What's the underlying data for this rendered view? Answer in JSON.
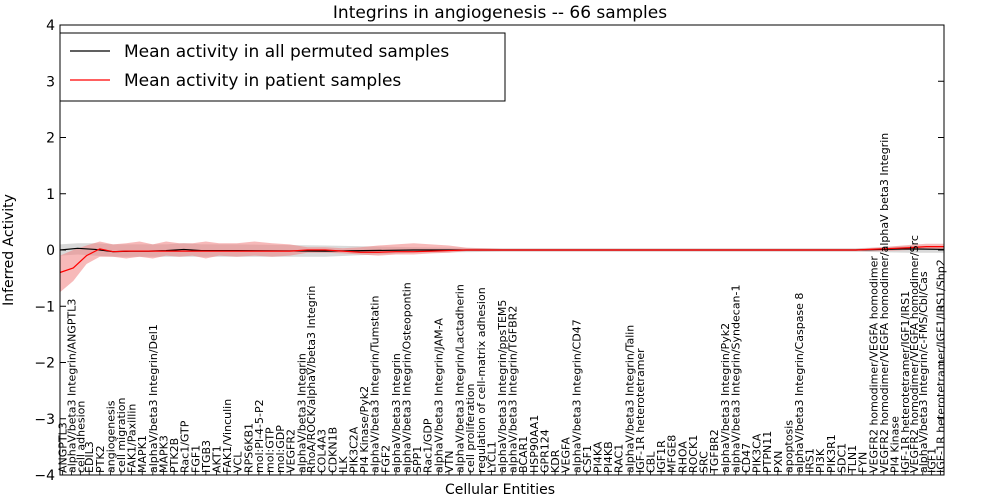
{
  "chart_data": {
    "type": "line",
    "title": "Integrins in angiogenesis -- 66 samples",
    "xlabel": "Cellular Entities",
    "ylabel": "Inferred Activity",
    "ylim": [
      -4,
      4
    ],
    "yticks": [
      -4,
      -3,
      -2,
      -1,
      0,
      1,
      2,
      3,
      4
    ],
    "ytick_labels": [
      "−4",
      "−3",
      "−2",
      "−1",
      "0",
      "1",
      "2",
      "3",
      "4"
    ],
    "xlim": [
      0,
      1
    ],
    "legend_position": "upper-left",
    "colors": {
      "permuted": "#000000",
      "permuted_band": "#bfbfbf",
      "patient": "#ff0000",
      "patient_band": "#f08080"
    },
    "series": [
      {
        "name": "Mean activity in all permuted samples",
        "key": "permuted",
        "x": [
          0,
          0.02,
          0.04,
          0.06,
          0.08,
          0.1,
          0.12,
          0.14,
          0.16,
          0.2,
          0.3,
          0.4,
          0.5,
          0.6,
          0.7,
          0.8,
          0.9,
          0.96,
          1.0
        ],
        "values": [
          0,
          0.03,
          0.01,
          -0.03,
          -0.02,
          -0.02,
          -0.01,
          0.01,
          -0.01,
          -0.01,
          -0.02,
          0,
          0,
          0,
          0,
          0,
          0,
          0.02,
          0.01
        ],
        "lower": [
          -0.1,
          -0.08,
          -0.1,
          -0.12,
          -0.12,
          -0.12,
          -0.12,
          -0.12,
          -0.12,
          -0.12,
          -0.12,
          -0.05,
          -0.03,
          -0.03,
          -0.03,
          -0.03,
          -0.03,
          -0.05,
          -0.05
        ],
        "upper": [
          0.1,
          0.12,
          0.12,
          0.1,
          0.1,
          0.1,
          0.1,
          0.12,
          0.1,
          0.1,
          0.08,
          0.05,
          0.03,
          0.03,
          0.03,
          0.03,
          0.03,
          0.07,
          0.07
        ]
      },
      {
        "name": "Mean activity in patient samples",
        "key": "patient",
        "x": [
          0,
          0.015,
          0.03,
          0.045,
          0.06,
          0.075,
          0.09,
          0.105,
          0.12,
          0.135,
          0.15,
          0.165,
          0.18,
          0.2,
          0.22,
          0.24,
          0.26,
          0.28,
          0.3,
          0.32,
          0.34,
          0.36,
          0.38,
          0.4,
          0.42,
          0.44,
          0.46,
          0.48,
          0.5,
          0.55,
          0.6,
          0.65,
          0.7,
          0.75,
          0.8,
          0.85,
          0.9,
          0.93,
          0.96,
          0.98,
          1.0
        ],
        "values": [
          -0.4,
          -0.32,
          -0.1,
          0.02,
          -0.03,
          -0.02,
          -0.02,
          -0.02,
          -0.02,
          -0.02,
          -0.02,
          -0.02,
          -0.02,
          -0.02,
          -0.02,
          -0.02,
          -0.02,
          0,
          0,
          -0.02,
          -0.04,
          -0.04,
          -0.03,
          -0.03,
          -0.02,
          -0.01,
          0,
          0,
          0,
          0,
          0,
          0,
          0,
          0,
          0,
          0,
          0,
          0.02,
          0.04,
          0.06,
          0.06
        ],
        "lower": [
          -0.75,
          -0.55,
          -0.25,
          -0.12,
          -0.12,
          -0.15,
          -0.12,
          -0.15,
          -0.1,
          -0.12,
          -0.1,
          -0.15,
          -0.1,
          -0.12,
          -0.1,
          -0.12,
          -0.1,
          -0.05,
          -0.05,
          -0.06,
          -0.08,
          -0.1,
          -0.08,
          -0.08,
          -0.06,
          -0.05,
          -0.02,
          -0.02,
          -0.02,
          -0.02,
          -0.02,
          -0.02,
          -0.02,
          -0.02,
          -0.02,
          -0.02,
          -0.02,
          -0.02,
          0,
          0.01,
          0.01
        ],
        "upper": [
          -0.1,
          0,
          0.08,
          0.15,
          0.1,
          0.12,
          0.15,
          0.1,
          0.15,
          0.12,
          0.12,
          0.15,
          0.12,
          0.12,
          0.15,
          0.12,
          0.1,
          0.05,
          0.05,
          0.03,
          0.05,
          0.08,
          0.1,
          0.12,
          0.1,
          0.08,
          0.04,
          0.03,
          0.02,
          0.02,
          0.02,
          0.02,
          0.02,
          0.02,
          0.02,
          0.02,
          0.02,
          0.05,
          0.09,
          0.11,
          0.11
        ]
      }
    ],
    "entities": [
      {
        "name": "ANGPTL3",
        "x": 0.003
      },
      {
        "name": "alphaV/beta3 Integrin/ANGPTL3",
        "x": 0.013
      },
      {
        "name": "cell adhesion",
        "x": 0.023
      },
      {
        "name": "EDIL3",
        "x": 0.033
      },
      {
        "name": "PTK2",
        "x": 0.045
      },
      {
        "name": "angiogenesis",
        "x": 0.057
      },
      {
        "name": "cell migration",
        "x": 0.069
      },
      {
        "name": "FAK1/Paxillin",
        "x": 0.081
      },
      {
        "name": "MAPK1",
        "x": 0.093
      },
      {
        "name": "alphaV/beta3 Integrin/Del1",
        "x": 0.105
      },
      {
        "name": "MAPK3",
        "x": 0.117
      },
      {
        "name": "PTK2B",
        "x": 0.129
      },
      {
        "name": "Rac1/GTP",
        "x": 0.141
      },
      {
        "name": "FGF1",
        "x": 0.153
      },
      {
        "name": "ITGB3",
        "x": 0.165
      },
      {
        "name": "AKT1",
        "x": 0.177
      },
      {
        "name": "FAK1/Vinculin",
        "x": 0.189
      },
      {
        "name": "VCL",
        "x": 0.201
      },
      {
        "name": "RPS6KB1",
        "x": 0.213
      },
      {
        "name": "mol:PI-4-5-P2",
        "x": 0.225
      },
      {
        "name": "mol:GTP",
        "x": 0.237
      },
      {
        "name": "mol:GDP",
        "x": 0.249
      },
      {
        "name": "VEGFR2",
        "x": 0.261
      },
      {
        "name": "alphaV/beta3 Integrin",
        "x": 0.273
      },
      {
        "name": "RhoA/ROCK/alphaV/beta3 Integrin",
        "x": 0.284
      },
      {
        "name": "COL4A3",
        "x": 0.296
      },
      {
        "name": "CDKN1B",
        "x": 0.308
      },
      {
        "name": "ILK",
        "x": 0.32
      },
      {
        "name": "PIK3C2A",
        "x": 0.332
      },
      {
        "name": "PI4 Kinase/Pyk2",
        "x": 0.344
      },
      {
        "name": "alphaV/beta3 Integrin/Tumstatin",
        "x": 0.356
      },
      {
        "name": "FGF2",
        "x": 0.368
      },
      {
        "name": "alphaV/beta3 Integrin",
        "x": 0.38
      },
      {
        "name": "alphaV/beta3 Integrin/Osteopontin",
        "x": 0.392
      },
      {
        "name": "SPP1",
        "x": 0.404
      },
      {
        "name": "Rac1/GDP",
        "x": 0.416
      },
      {
        "name": "alphaV/beta3 Integrin/JAM-A",
        "x": 0.428
      },
      {
        "name": "VTN",
        "x": 0.44
      },
      {
        "name": "alphaV/beta3 Integrin/Lactadherin",
        "x": 0.452
      },
      {
        "name": "cell proliferation",
        "x": 0.464
      },
      {
        "name": "regulation of cell-matrix adhesion",
        "x": 0.476
      },
      {
        "name": "LYCL1",
        "x": 0.488
      },
      {
        "name": "alphaV/beta3 Integrin/ppsTEM5",
        "x": 0.5
      },
      {
        "name": "alphaV/beta3 Integrin/TGFBR2",
        "x": 0.512
      },
      {
        "name": "BCAR1",
        "x": 0.524
      },
      {
        "name": "HSP90AA1",
        "x": 0.536
      },
      {
        "name": "GPR124",
        "x": 0.548
      },
      {
        "name": "KDR",
        "x": 0.56
      },
      {
        "name": "VEGFA",
        "x": 0.572
      },
      {
        "name": "alphaV/beta3 Integrin/CD47",
        "x": 0.584
      },
      {
        "name": "CSF1",
        "x": 0.596
      },
      {
        "name": "PI4KA",
        "x": 0.608
      },
      {
        "name": "PI4KB",
        "x": 0.62
      },
      {
        "name": "RAC1",
        "x": 0.632
      },
      {
        "name": "alphaV/beta3 Integrin/Talin",
        "x": 0.644
      },
      {
        "name": "IGF-1R heterotetramer",
        "x": 0.656
      },
      {
        "name": "CBL",
        "x": 0.668
      },
      {
        "name": "IGF1R",
        "x": 0.68
      },
      {
        "name": "MFGE8",
        "x": 0.692
      },
      {
        "name": "RHOA",
        "x": 0.704
      },
      {
        "name": "ROCK1",
        "x": 0.716
      },
      {
        "name": "SRC",
        "x": 0.728
      },
      {
        "name": "TGFBR2",
        "x": 0.74
      },
      {
        "name": "alphaV/beta3 Integrin/Pyk2",
        "x": 0.752
      },
      {
        "name": "alphaV/beta3 Integrin/Syndecan-1",
        "x": 0.764
      },
      {
        "name": "CD47",
        "x": 0.776
      },
      {
        "name": "PIK3CA",
        "x": 0.788
      },
      {
        "name": "PTPN11",
        "x": 0.8
      },
      {
        "name": "PXN",
        "x": 0.812
      },
      {
        "name": "apoptosis",
        "x": 0.824
      },
      {
        "name": "alphaV/beta3 Integrin/Caspase 8",
        "x": 0.836
      },
      {
        "name": "IRS1",
        "x": 0.848
      },
      {
        "name": "PI3K",
        "x": 0.86
      },
      {
        "name": "PIK3R1",
        "x": 0.872
      },
      {
        "name": "SDC1",
        "x": 0.884
      },
      {
        "name": "TLN1",
        "x": 0.896
      },
      {
        "name": "FYN",
        "x": 0.908
      },
      {
        "name": "VEGFR2 homodimer/VEGFA homodimer",
        "x": 0.92
      },
      {
        "name": "VEGFR2 homodimer/VEGFA homodimer/alphaV beta3 Integrin",
        "x": 0.932
      },
      {
        "name": "PI4 Kinase",
        "x": 0.944
      },
      {
        "name": "IGF-1R heterotetramer/IGF1/IRS1",
        "x": 0.956
      },
      {
        "name": "VEGFR2 homodimer/VEGFA homodimer/Src",
        "x": 0.966
      },
      {
        "name": "alphaV/beta3 Integrin/c-FMS/Cbl/Cas",
        "x": 0.976
      },
      {
        "name": "IGF1",
        "x": 0.986
      },
      {
        "name": "IGF-1R heterotetramer/IGF1/IRS1/Shp2",
        "x": 0.996
      }
    ]
  }
}
